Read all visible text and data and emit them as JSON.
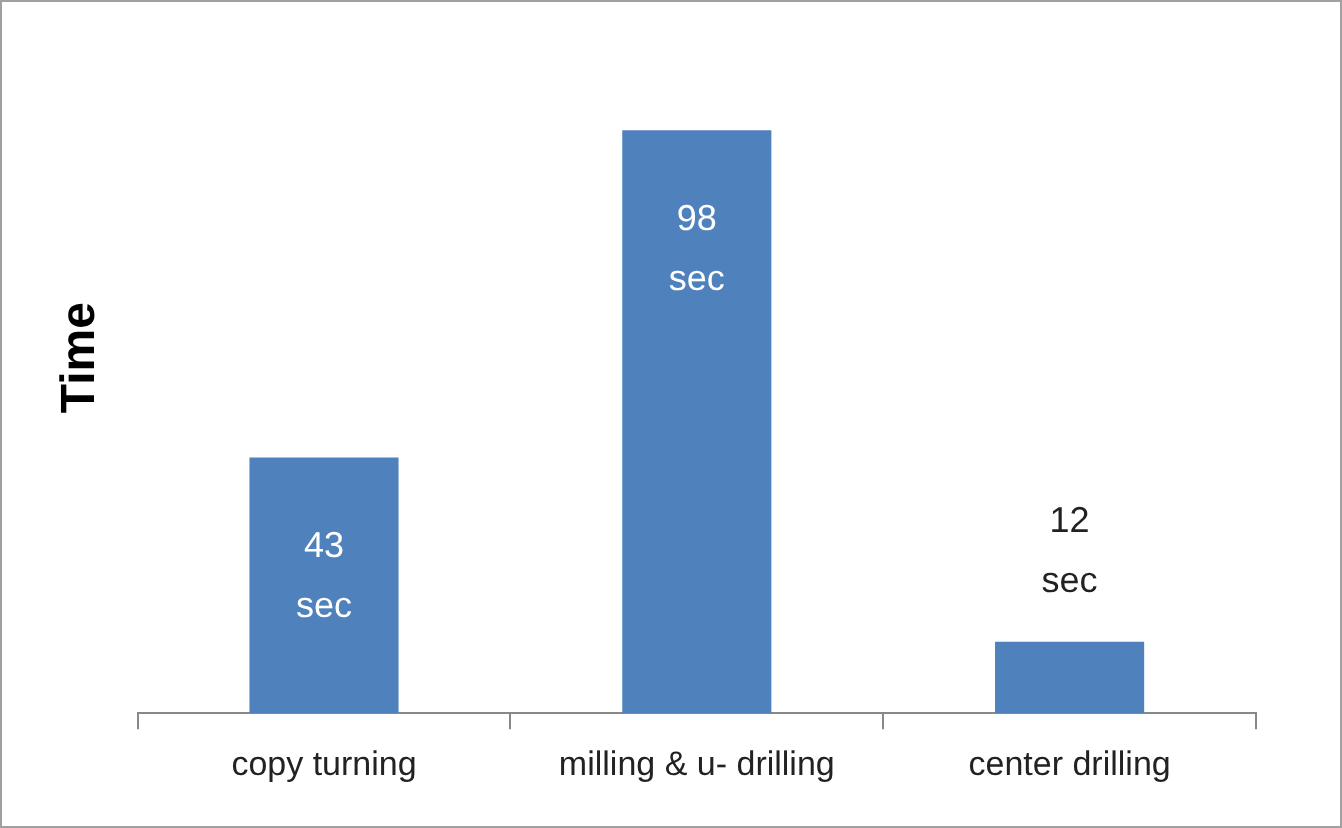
{
  "chart_data": {
    "type": "bar",
    "ylabel": "Time",
    "categories": [
      "copy turning",
      "milling & u- drilling",
      "center drilling"
    ],
    "values": [
      43,
      98,
      12
    ],
    "color": "#4f81bd",
    "value_labels": [
      "43 sec",
      "98 sec",
      "12 sec"
    ],
    "grid": false,
    "legend": false,
    "tick_labels": "x"
  }
}
